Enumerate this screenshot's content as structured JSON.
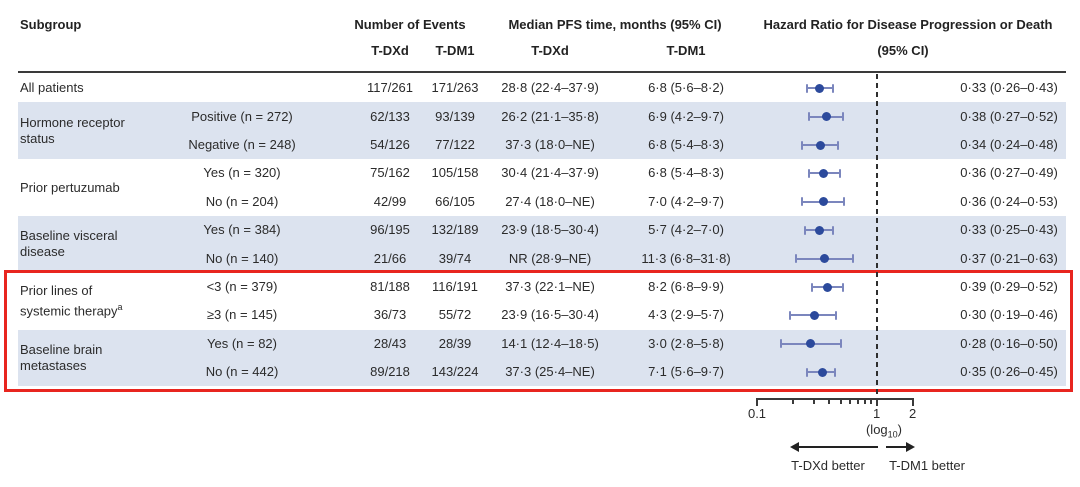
{
  "header": {
    "subgroup": "Subgroup",
    "events": "Number of Events",
    "events_tdxd": "T-DXd",
    "events_tdm1": "T-DM1",
    "pfs": "Median PFS time, months (95% CI)",
    "pfs_tdxd": "T-DXd",
    "pfs_tdm1": "T-DM1",
    "hr_line1": "Hazard Ratio for Disease Progression or Death",
    "hr_line2": "(95% CI)"
  },
  "groups": [
    {
      "label_lines": [
        "All patients"
      ],
      "sup": "",
      "row": 0,
      "span": 1
    },
    {
      "label_lines": [
        "Hormone receptor",
        "status"
      ],
      "sup": "",
      "row": 1,
      "span": 2
    },
    {
      "label_lines": [
        "Prior pertuzumab"
      ],
      "sup": "",
      "row": 3,
      "span": 2
    },
    {
      "label_lines": [
        "Baseline visceral",
        "disease"
      ],
      "sup": "",
      "row": 5,
      "span": 2
    },
    {
      "label_lines": [
        "Prior lines of",
        "systemic therapy"
      ],
      "sup": "a",
      "row": 7,
      "span": 2
    },
    {
      "label_lines": [
        "Baseline brain",
        "metastases"
      ],
      "sup": "",
      "row": 9,
      "span": 2
    }
  ],
  "chart_data": {
    "type": "scatter",
    "subtype": "forest-plot",
    "title": "",
    "x_axis": {
      "scale": "log10",
      "min": 0.1,
      "max": 2,
      "ref_line": 1,
      "minor_ticks": [
        0.2,
        0.3,
        0.4,
        0.5,
        0.6,
        0.7,
        0.8,
        0.9
      ],
      "labeled_ticks": [
        {
          "value": 0.1,
          "label": "0.1"
        },
        {
          "value": 1,
          "label": "1"
        },
        {
          "value": 2,
          "label": "2"
        }
      ],
      "note_prefix": "(log",
      "note_sub": "10",
      "note_suffix": ")"
    },
    "rows": [
      {
        "subgroup": "All patients",
        "category": "",
        "events_tdxd": "117/261",
        "events_tdm1": "171/263",
        "pfs_tdxd": "28·8 (22·4–37·9)",
        "pfs_tdm1": "6·8 (5·6–8·2)",
        "hr": 0.33,
        "ci_low": 0.26,
        "ci_high": 0.43,
        "hr_label": "0·33 (0·26–0·43)",
        "shaded": false
      },
      {
        "subgroup": "Hormone receptor status",
        "category": "Positive (n = 272)",
        "events_tdxd": "62/133",
        "events_tdm1": "93/139",
        "pfs_tdxd": "26·2 (21·1–35·8)",
        "pfs_tdm1": "6·9 (4·2–9·7)",
        "hr": 0.38,
        "ci_low": 0.27,
        "ci_high": 0.52,
        "hr_label": "0·38 (0·27–0·52)",
        "shaded": true
      },
      {
        "subgroup": "Hormone receptor status",
        "category": "Negative (n = 248)",
        "events_tdxd": "54/126",
        "events_tdm1": "77/122",
        "pfs_tdxd": "37·3 (18·0–NE)",
        "pfs_tdm1": "6·8 (5·4–8·3)",
        "hr": 0.34,
        "ci_low": 0.24,
        "ci_high": 0.48,
        "hr_label": "0·34 (0·24–0·48)",
        "shaded": true
      },
      {
        "subgroup": "Prior pertuzumab",
        "category": "Yes (n = 320)",
        "events_tdxd": "75/162",
        "events_tdm1": "105/158",
        "pfs_tdxd": "30·4 (21·4–37·9)",
        "pfs_tdm1": "6·8 (5·4–8·3)",
        "hr": 0.36,
        "ci_low": 0.27,
        "ci_high": 0.49,
        "hr_label": "0·36 (0·27–0·49)",
        "shaded": false
      },
      {
        "subgroup": "Prior pertuzumab",
        "category": "No (n = 204)",
        "events_tdxd": "42/99",
        "events_tdm1": "66/105",
        "pfs_tdxd": "27·4 (18·0–NE)",
        "pfs_tdm1": "7·0 (4·2–9·7)",
        "hr": 0.36,
        "ci_low": 0.24,
        "ci_high": 0.53,
        "hr_label": "0·36 (0·24–0·53)",
        "shaded": false
      },
      {
        "subgroup": "Baseline visceral disease",
        "category": "Yes (n = 384)",
        "events_tdxd": "96/195",
        "events_tdm1": "132/189",
        "pfs_tdxd": "23·9 (18·5–30·4)",
        "pfs_tdm1": "5·7 (4·2–7·0)",
        "hr": 0.33,
        "ci_low": 0.25,
        "ci_high": 0.43,
        "hr_label": "0·33 (0·25–0·43)",
        "shaded": true
      },
      {
        "subgroup": "Baseline visceral disease",
        "category": "No (n = 140)",
        "events_tdxd": "21/66",
        "events_tdm1": "39/74",
        "pfs_tdxd": "NR (28·9–NE)",
        "pfs_tdm1": "11·3 (6·8–31·8)",
        "hr": 0.37,
        "ci_low": 0.21,
        "ci_high": 0.63,
        "hr_label": "0·37 (0·21–0·63)",
        "shaded": true
      },
      {
        "subgroup": "Prior lines of systemic therapy",
        "category": "<3 (n = 379)",
        "events_tdxd": "81/188",
        "events_tdm1": "116/191",
        "pfs_tdxd": "37·3 (22·1–NE)",
        "pfs_tdm1": "8·2 (6·8–9·9)",
        "hr": 0.39,
        "ci_low": 0.29,
        "ci_high": 0.52,
        "hr_label": "0·39 (0·29–0·52)",
        "shaded": false
      },
      {
        "subgroup": "Prior lines of systemic therapy",
        "category": "≥3 (n = 145)",
        "events_tdxd": "36/73",
        "events_tdm1": "55/72",
        "pfs_tdxd": "23·9 (16·5–30·4)",
        "pfs_tdm1": "4·3 (2·9–5·7)",
        "hr": 0.3,
        "ci_low": 0.19,
        "ci_high": 0.46,
        "hr_label": "0·30 (0·19–0·46)",
        "shaded": false
      },
      {
        "subgroup": "Baseline brain metastases",
        "category": "Yes (n = 82)",
        "events_tdxd": "28/43",
        "events_tdm1": "28/39",
        "pfs_tdxd": "14·1 (12·4–18·5)",
        "pfs_tdm1": "3·0 (2·8–5·8)",
        "hr": 0.28,
        "ci_low": 0.16,
        "ci_high": 0.5,
        "hr_label": "0·28 (0·16–0·50)",
        "shaded": true
      },
      {
        "subgroup": "Baseline brain metastases",
        "category": "No (n = 442)",
        "events_tdxd": "89/218",
        "events_tdm1": "143/224",
        "pfs_tdxd": "37·3 (25·4–NE)",
        "pfs_tdm1": "7·1 (5·6–9·7)",
        "hr": 0.35,
        "ci_low": 0.26,
        "ci_high": 0.45,
        "hr_label": "0·35 (0·26–0·45)",
        "shaded": true
      }
    ],
    "legend_arrows": {
      "left_label": "T-DXd better",
      "right_label": "T-DM1 better"
    }
  },
  "highlight": {
    "row_from": 7,
    "row_to": 10,
    "color": "#e8251f"
  },
  "colors": {
    "dot": "#2c4a9c",
    "ci": "#7b86bd",
    "band": "#dce3ef",
    "text": "#2b2b2b",
    "axis": "#3a3a3a",
    "highlight": "#e8251f"
  }
}
